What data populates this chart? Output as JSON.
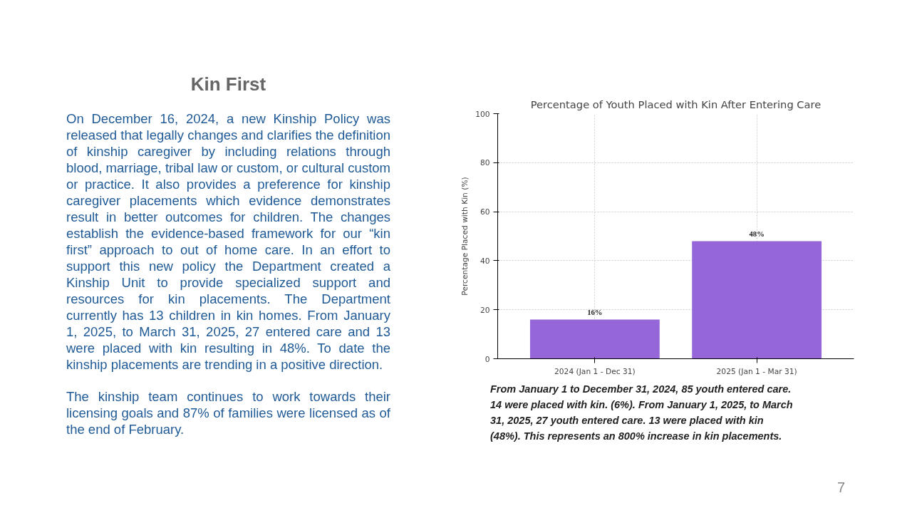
{
  "chart_data": {
    "type": "bar",
    "title": "Percentage of Youth Placed with Kin After Entering Care",
    "ylabel": "Percentage Placed with Kin (%)",
    "categories": [
      "2024 (Jan 1 - Dec 31)",
      "2025 (Jan 1 - Mar 31)"
    ],
    "values": [
      16,
      48
    ],
    "color": "#9466d8",
    "value_labels": [
      "16%",
      "48%"
    ],
    "ylim": [
      0,
      100
    ],
    "yticks": [
      0,
      20,
      40,
      60,
      80,
      100
    ],
    "grid": true,
    "annotations": [
      "Kin First",
      "On December 16, 2024,  a new Kinship Policy was released that legally changes and clarifies the definition of kinship caregiver by including relations through blood, marriage, tribal law or custom, or cultural custom or practice. It also provides a preference for kinship caregiver placements which evidence demonstrates result in better outcomes for children. The changes establish the evidence-based framework for our “kin first” approach to out of home care. In an effort to support this new policy the Department created a Kinship Unit to provide specialized support and resources for kin placements. The Department currently has 13 children in kin homes. From January 1, 2025, to March 31, 2025, 27 entered care and 13 were placed with kin resulting in 48%. To date the kinship placements are trending in a positive direction.",
      "The kinship team continues to work towards their licensing goals and 87% of families were licensed as of the end of February.",
      "From January 1 to December 31, 2024, 85 youth entered care.  14 were placed with kin. (6%).  From January 1, 2025, to March 31, 2025, 27 youth entered care.  13 were placed with kin (48%).   This represents an 800% increase in kin placements.",
      "7"
    ]
  }
}
